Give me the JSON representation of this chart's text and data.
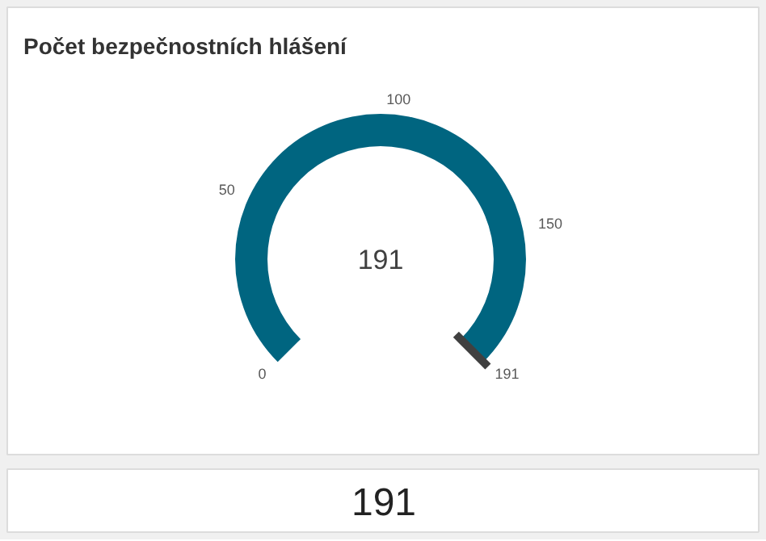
{
  "chart_data": [
    {
      "type": "other",
      "title": "Počet bezpečnostních hlášení",
      "values": [
        191
      ],
      "color": "#006580",
      "annotations": [
        "0",
        "50",
        "100",
        "150",
        "191"
      ],
      "data_labels": true
    },
    {
      "type": "other",
      "annotations": [
        "191"
      ]
    }
  ]
}
